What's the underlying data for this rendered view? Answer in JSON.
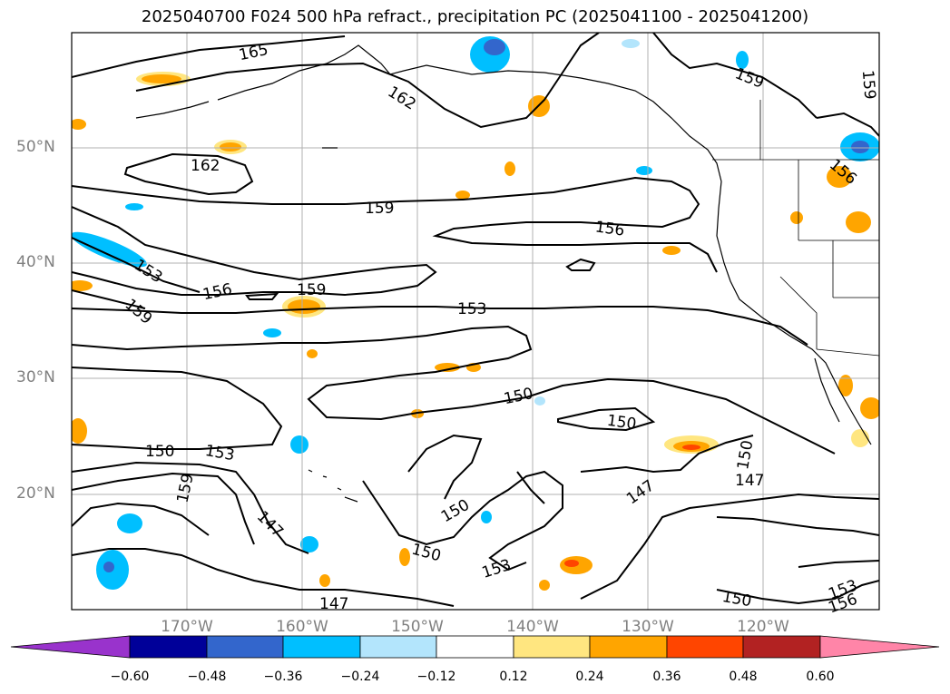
{
  "title": "2025040700 F024 500 hPa refract., precipitation PC (2025041100 - 2025041200)",
  "lat_ticks": [
    "50°N",
    "40°N",
    "30°N",
    "20°N"
  ],
  "lon_ticks": [
    "170°W",
    "160°W",
    "150°W",
    "140°W",
    "130°W",
    "120°W"
  ],
  "colorbar": {
    "ticks": [
      "−0.60",
      "−0.48",
      "−0.36",
      "−0.24",
      "−0.12",
      "0.12",
      "0.24",
      "0.36",
      "0.48",
      "0.60"
    ],
    "colors": [
      "#9933cc",
      "#000099",
      "#3366cc",
      "#00bfff",
      "#b3e5fc",
      "#ffffff",
      "#ffe680",
      "#ffa500",
      "#ff4500",
      "#b22222",
      "#ff85a8"
    ]
  },
  "contour_labels": [
    "165",
    "162",
    "159",
    "162",
    "159",
    "156",
    "153",
    "156",
    "159",
    "159",
    "153",
    "150",
    "150",
    "150",
    "153",
    "159",
    "147",
    "150",
    "150",
    "153",
    "147",
    "147",
    "150",
    "150",
    "147",
    "153",
    "156",
    "159",
    "156"
  ],
  "colors": {
    "contour": "#000000",
    "grid": "#b0b0b0",
    "coast": "#000000"
  }
}
